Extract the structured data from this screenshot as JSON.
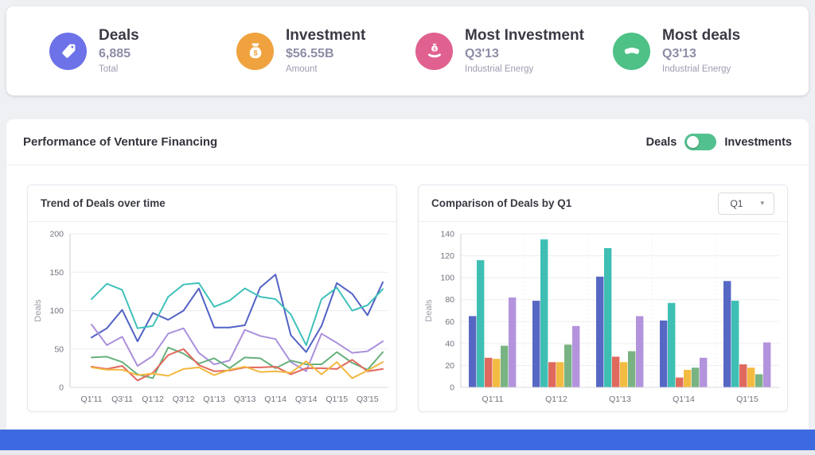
{
  "kpi": {
    "items": [
      {
        "title": "Deals",
        "value": "6,885",
        "sublabel": "Total",
        "icon": "tag-icon",
        "color": "#6d72e8"
      },
      {
        "title": "Investment",
        "value": "$56.55B",
        "sublabel": "Amount",
        "icon": "money-bag-icon",
        "color": "#efa23e"
      },
      {
        "title": "Most Investment",
        "value": "Q3'13",
        "sublabel": "Industrial Energy",
        "icon": "hand-money-icon",
        "color": "#e0618f"
      },
      {
        "title": "Most deals",
        "value": "Q3'13",
        "sublabel": "Industrial Energy",
        "icon": "handshake-icon",
        "color": "#4ec187"
      }
    ]
  },
  "panel": {
    "title": "Performance of Venture Financing",
    "toggle": {
      "left_label": "Deals",
      "right_label": "Investments",
      "state": "left",
      "color": "#53c08f"
    }
  },
  "footer": {
    "color": "#3d6ae0"
  },
  "chart_data": [
    {
      "type": "line",
      "title": "Trend of Deals over time",
      "ylabel": "Deals",
      "ylim": [
        0,
        200
      ],
      "yticks": [
        0,
        50,
        100,
        150,
        200
      ],
      "grid": true,
      "legend": "none",
      "x": [
        "Q1'11",
        "Q2'11",
        "Q3'11",
        "Q4'11",
        "Q1'12",
        "Q2'12",
        "Q3'12",
        "Q4'12",
        "Q1'13",
        "Q2'13",
        "Q3'13",
        "Q4'13",
        "Q1'14",
        "Q2'14",
        "Q3'14",
        "Q4'14",
        "Q1'15",
        "Q2'15",
        "Q3'15",
        "Q4'15"
      ],
      "xtick_labels": [
        "Q1'11",
        "Q3'11",
        "Q1'12",
        "Q3'12",
        "Q1'13",
        "Q3'13",
        "Q1'14",
        "Q3'14",
        "Q1'15",
        "Q3'15"
      ],
      "series": [
        {
          "name": "indigo",
          "color": "#5262c4",
          "values": [
            65,
            77,
            101,
            60,
            97,
            88,
            100,
            129,
            78,
            78,
            81,
            130,
            147,
            68,
            46,
            80,
            136,
            122,
            94,
            137
          ]
        },
        {
          "name": "teal",
          "color": "#3fc1ba",
          "values": [
            115,
            135,
            127,
            77,
            80,
            118,
            134,
            136,
            105,
            113,
            129,
            118,
            115,
            95,
            55,
            115,
            130,
            100,
            107,
            128
          ]
        },
        {
          "name": "purple",
          "color": "#ab90dc",
          "values": [
            82,
            55,
            66,
            28,
            41,
            70,
            77,
            45,
            30,
            35,
            75,
            67,
            63,
            33,
            21,
            70,
            58,
            45,
            47,
            60
          ]
        },
        {
          "name": "green",
          "color": "#67b07c",
          "values": [
            39,
            40,
            33,
            17,
            12,
            52,
            44,
            31,
            38,
            25,
            39,
            38,
            25,
            35,
            30,
            30,
            46,
            32,
            23,
            46
          ]
        },
        {
          "name": "red",
          "color": "#e2685c",
          "values": [
            27,
            24,
            28,
            9,
            19,
            42,
            50,
            29,
            21,
            22,
            26,
            26,
            27,
            17,
            25,
            25,
            24,
            36,
            21,
            24
          ]
        },
        {
          "name": "yellow",
          "color": "#f3b83f",
          "values": [
            26,
            23,
            23,
            16,
            18,
            15,
            24,
            26,
            16,
            23,
            27,
            20,
            21,
            19,
            34,
            17,
            33,
            12,
            22,
            33
          ]
        }
      ]
    },
    {
      "type": "bar",
      "title": "Comparison of Deals by Q1",
      "selected_quarter": "Q1",
      "ylabel": "Deals",
      "ylim": [
        0,
        140
      ],
      "yticks": [
        0,
        20,
        40,
        60,
        80,
        100,
        120,
        140
      ],
      "grid": true,
      "legend": "none",
      "categories": [
        "Q1'11",
        "Q1'12",
        "Q1'13",
        "Q1'14",
        "Q1'15"
      ],
      "series": [
        {
          "name": "indigo",
          "color": "#5668c3",
          "values": [
            65,
            79,
            101,
            61,
            97
          ]
        },
        {
          "name": "teal",
          "color": "#3fbfb4",
          "values": [
            116,
            135,
            127,
            77,
            79
          ]
        },
        {
          "name": "red",
          "color": "#e0695e",
          "values": [
            27,
            23,
            28,
            9,
            21
          ]
        },
        {
          "name": "yellow",
          "color": "#f2bb41",
          "values": [
            26,
            23,
            23,
            16,
            18
          ]
        },
        {
          "name": "green",
          "color": "#79b383",
          "values": [
            38,
            39,
            33,
            18,
            12
          ]
        },
        {
          "name": "purple",
          "color": "#b493dd",
          "values": [
            82,
            56,
            65,
            27,
            41
          ]
        }
      ]
    }
  ]
}
